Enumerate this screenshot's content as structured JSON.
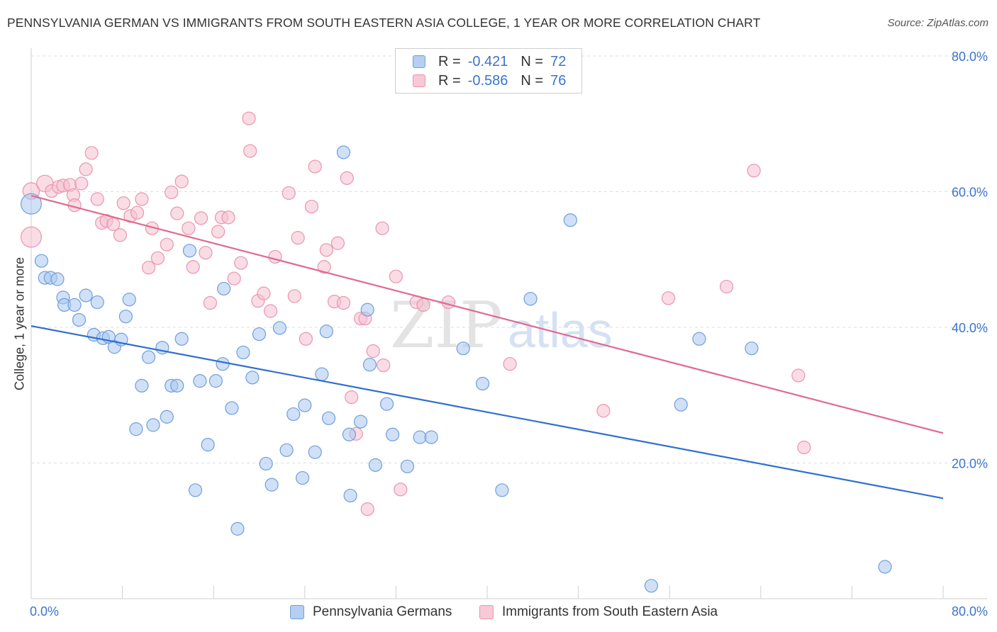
{
  "title": "PENNSYLVANIA GERMAN VS IMMIGRANTS FROM SOUTH EASTERN ASIA COLLEGE, 1 YEAR OR MORE CORRELATION CHART",
  "source": "Source: ZipAtlas.com",
  "watermark": {
    "zip": "ZIP",
    "atlas": "atlas"
  },
  "legend": {
    "series1": {
      "r_label": "R =",
      "r_value": "-0.421",
      "n_label": "N =",
      "n_value": "72"
    },
    "series2": {
      "r_label": "R =",
      "r_value": "-0.586",
      "n_label": "N =",
      "n_value": "76"
    }
  },
  "colors": {
    "blue_fill": "#a9c7ee",
    "blue_stroke": "#6f9fdc",
    "blue_line": "#2f6fce",
    "pink_fill": "#f6bfd0",
    "pink_stroke": "#e995b0",
    "pink_line": "#e0698f",
    "axis_text": "#3c74cc",
    "grid": "#dddddd"
  },
  "chart_data": {
    "type": "scatter",
    "title": "PENNSYLVANIA GERMAN VS IMMIGRANTS FROM SOUTH EASTERN ASIA COLLEGE, 1 YEAR OR MORE CORRELATION CHART",
    "xlabel": "",
    "ylabel": "College, 1 year or more",
    "xlim": [
      0,
      80
    ],
    "ylim": [
      0,
      80
    ],
    "x_tick_labels": [
      "0.0%",
      "80.0%"
    ],
    "y_tick_labels": [
      "20.0%",
      "40.0%",
      "60.0%",
      "80.0%"
    ],
    "y_ticks": [
      20,
      40,
      60,
      80
    ],
    "x_minor_ticks": [
      8,
      16,
      24,
      32,
      40,
      48,
      56,
      64,
      72,
      80
    ],
    "series": [
      {
        "name": "Pennsylvania Germans",
        "color": "blue",
        "trend": {
          "x": [
            0,
            80
          ],
          "y": [
            40.2,
            14.8
          ]
        },
        "points": [
          [
            0.0,
            58.2,
            1.6
          ],
          [
            0.9,
            49.8,
            1
          ],
          [
            1.2,
            47.3,
            1
          ],
          [
            1.7,
            47.3,
            1
          ],
          [
            2.3,
            47.1,
            1
          ],
          [
            2.8,
            44.4,
            1
          ],
          [
            2.9,
            43.3,
            1
          ],
          [
            3.8,
            43.3,
            1
          ],
          [
            4.2,
            41.1,
            1
          ],
          [
            4.8,
            44.7,
            1
          ],
          [
            5.5,
            38.9,
            1
          ],
          [
            5.8,
            43.7,
            1
          ],
          [
            6.3,
            38.4,
            1
          ],
          [
            6.8,
            38.6,
            1
          ],
          [
            7.3,
            37.1,
            1
          ],
          [
            7.9,
            38.2,
            1
          ],
          [
            8.3,
            41.6,
            1
          ],
          [
            8.6,
            44.1,
            1
          ],
          [
            9.2,
            25.0,
            1
          ],
          [
            9.7,
            31.4,
            1
          ],
          [
            10.3,
            35.6,
            1
          ],
          [
            10.7,
            25.6,
            1
          ],
          [
            11.5,
            37.0,
            1
          ],
          [
            11.9,
            26.8,
            1
          ],
          [
            12.3,
            31.4,
            1
          ],
          [
            12.8,
            31.4,
            1
          ],
          [
            13.2,
            38.3,
            1
          ],
          [
            13.9,
            51.3,
            1
          ],
          [
            14.4,
            16.0,
            1
          ],
          [
            14.8,
            32.1,
            1
          ],
          [
            15.5,
            22.7,
            1
          ],
          [
            16.2,
            32.1,
            1
          ],
          [
            16.8,
            34.6,
            1
          ],
          [
            16.9,
            45.7,
            1
          ],
          [
            17.6,
            28.1,
            1
          ],
          [
            18.1,
            10.3,
            1
          ],
          [
            18.6,
            36.3,
            1
          ],
          [
            19.4,
            32.6,
            1
          ],
          [
            20.0,
            39.0,
            1
          ],
          [
            20.6,
            19.9,
            1
          ],
          [
            21.1,
            16.8,
            1
          ],
          [
            21.8,
            39.9,
            1
          ],
          [
            22.4,
            21.9,
            1
          ],
          [
            23.0,
            27.2,
            1
          ],
          [
            23.8,
            17.8,
            1
          ],
          [
            24.0,
            28.5,
            1
          ],
          [
            24.9,
            21.6,
            1
          ],
          [
            25.5,
            33.1,
            1
          ],
          [
            25.9,
            39.4,
            1
          ],
          [
            26.1,
            26.6,
            1
          ],
          [
            27.4,
            65.8,
            1
          ],
          [
            28.0,
            15.2,
            1
          ],
          [
            27.9,
            24.2,
            1
          ],
          [
            28.9,
            26.1,
            1
          ],
          [
            29.5,
            42.6,
            1
          ],
          [
            29.7,
            34.5,
            1
          ],
          [
            30.2,
            19.7,
            1
          ],
          [
            31.2,
            28.7,
            1
          ],
          [
            31.7,
            24.2,
            1
          ],
          [
            33.0,
            19.5,
            1
          ],
          [
            34.1,
            23.8,
            1
          ],
          [
            35.1,
            23.8,
            1
          ],
          [
            37.9,
            36.9,
            1
          ],
          [
            39.6,
            31.7,
            1
          ],
          [
            41.3,
            16.0,
            1
          ],
          [
            43.8,
            44.2,
            1
          ],
          [
            47.3,
            55.8,
            1
          ],
          [
            54.4,
            1.9,
            1
          ],
          [
            57.0,
            28.6,
            1
          ],
          [
            58.6,
            38.3,
            1
          ],
          [
            63.2,
            36.9,
            1
          ],
          [
            74.9,
            4.7,
            1
          ]
        ]
      },
      {
        "name": "Immigrants from South Eastern Asia",
        "color": "pink",
        "trend": {
          "x": [
            0,
            80
          ],
          "y": [
            59.4,
            24.4
          ]
        },
        "points": [
          [
            0.0,
            53.3,
            1.6
          ],
          [
            0.0,
            60.1,
            1.3
          ],
          [
            1.2,
            61.2,
            1.3
          ],
          [
            1.8,
            60.1,
            1
          ],
          [
            2.4,
            60.7,
            1
          ],
          [
            2.8,
            60.9,
            1
          ],
          [
            3.4,
            61.0,
            1
          ],
          [
            3.7,
            59.5,
            1
          ],
          [
            3.8,
            58.0,
            1
          ],
          [
            4.4,
            61.2,
            1
          ],
          [
            4.8,
            63.3,
            1
          ],
          [
            5.3,
            65.7,
            1
          ],
          [
            5.8,
            58.9,
            1
          ],
          [
            6.2,
            55.4,
            1
          ],
          [
            6.6,
            55.7,
            1
          ],
          [
            7.2,
            55.2,
            1
          ],
          [
            7.8,
            53.6,
            1
          ],
          [
            8.1,
            58.3,
            1
          ],
          [
            8.7,
            56.4,
            1
          ],
          [
            9.3,
            56.9,
            1
          ],
          [
            9.7,
            58.9,
            1
          ],
          [
            10.3,
            48.8,
            1
          ],
          [
            10.6,
            54.6,
            1
          ],
          [
            11.1,
            50.2,
            1
          ],
          [
            11.9,
            52.2,
            1
          ],
          [
            12.3,
            59.9,
            1
          ],
          [
            12.8,
            56.8,
            1
          ],
          [
            13.2,
            61.5,
            1
          ],
          [
            13.8,
            54.6,
            1
          ],
          [
            14.2,
            48.9,
            1
          ],
          [
            14.9,
            56.1,
            1
          ],
          [
            15.3,
            51.0,
            1
          ],
          [
            15.7,
            43.6,
            1
          ],
          [
            16.4,
            54.1,
            1
          ],
          [
            16.7,
            56.2,
            1
          ],
          [
            17.3,
            56.2,
            1
          ],
          [
            17.8,
            47.2,
            1
          ],
          [
            18.4,
            49.5,
            1
          ],
          [
            19.1,
            70.8,
            1
          ],
          [
            19.2,
            66.0,
            1
          ],
          [
            19.9,
            43.9,
            1
          ],
          [
            20.4,
            45.0,
            1
          ],
          [
            21.0,
            42.4,
            1
          ],
          [
            21.4,
            50.4,
            1
          ],
          [
            22.6,
            59.8,
            1
          ],
          [
            23.1,
            44.6,
            1
          ],
          [
            23.4,
            53.2,
            1
          ],
          [
            24.1,
            38.3,
            1
          ],
          [
            24.6,
            57.8,
            1
          ],
          [
            24.9,
            63.7,
            1
          ],
          [
            25.7,
            48.9,
            1
          ],
          [
            25.9,
            51.4,
            1
          ],
          [
            26.6,
            43.8,
            1
          ],
          [
            26.9,
            52.4,
            1
          ],
          [
            27.4,
            43.6,
            1
          ],
          [
            27.7,
            62.0,
            1
          ],
          [
            28.1,
            29.7,
            1
          ],
          [
            28.5,
            24.3,
            1
          ],
          [
            28.9,
            41.3,
            1
          ],
          [
            29.3,
            41.3,
            1
          ],
          [
            29.5,
            13.2,
            1
          ],
          [
            30.0,
            36.5,
            1
          ],
          [
            30.8,
            54.6,
            1
          ],
          [
            30.9,
            34.4,
            1
          ],
          [
            32.0,
            47.5,
            1
          ],
          [
            32.4,
            16.1,
            1
          ],
          [
            33.8,
            43.7,
            1
          ],
          [
            34.4,
            43.3,
            1
          ],
          [
            36.6,
            43.7,
            1
          ],
          [
            42.0,
            34.6,
            1
          ],
          [
            50.2,
            27.7,
            1
          ],
          [
            55.9,
            44.3,
            1
          ],
          [
            61.0,
            46.0,
            1
          ],
          [
            63.4,
            63.1,
            1
          ],
          [
            67.3,
            32.9,
            1
          ],
          [
            67.8,
            22.3,
            1
          ]
        ]
      }
    ]
  },
  "bottom_legend": [
    "Pennsylvania Germans",
    "Immigrants from South Eastern Asia"
  ]
}
